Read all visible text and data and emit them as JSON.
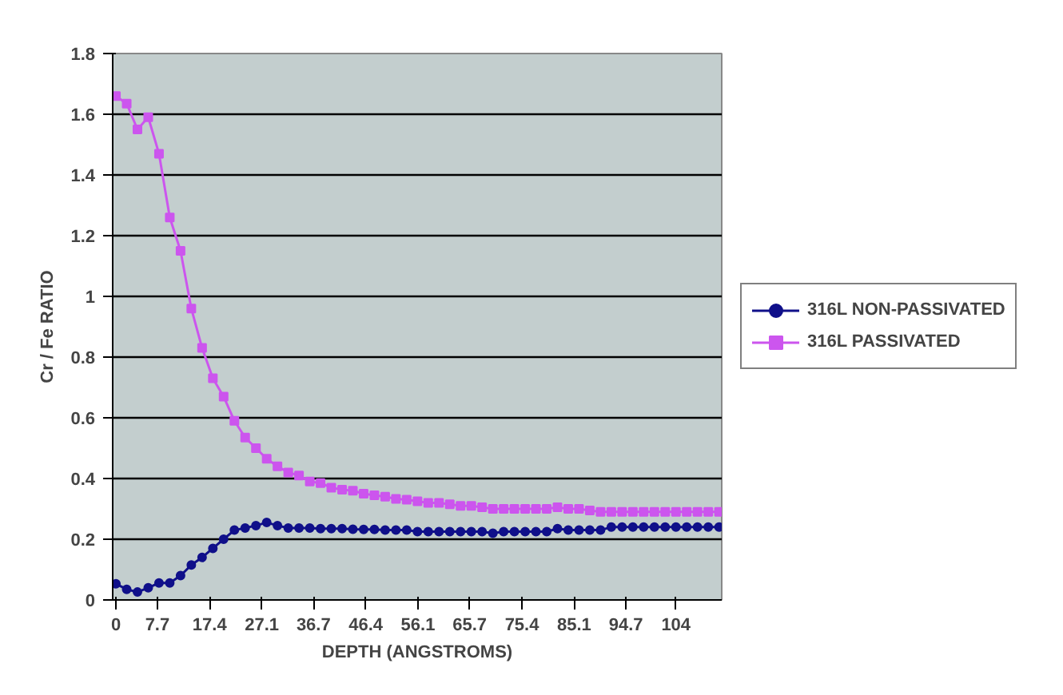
{
  "chart_data": {
    "type": "line",
    "xlabel": "DEPTH (ANGSTROMS)",
    "ylabel": "Cr / Fe RATIO",
    "x": [
      0,
      2,
      4,
      6,
      8,
      10,
      12,
      14,
      16,
      18,
      20,
      22,
      24,
      26,
      28,
      30,
      32,
      34,
      36,
      38,
      40,
      42,
      44,
      46,
      48,
      50,
      52,
      54,
      56,
      58,
      60,
      62,
      64,
      66,
      68,
      70,
      72,
      74,
      76,
      78,
      80,
      82,
      84,
      86,
      88,
      90,
      92,
      94,
      96,
      98,
      100,
      102,
      104,
      106,
      108,
      110,
      112
    ],
    "xlim": [
      -0.6,
      112.5
    ],
    "xticks": [
      0,
      7.7,
      17.4,
      27.1,
      36.7,
      46.4,
      56.1,
      65.7,
      75.4,
      85.1,
      94.7,
      104
    ],
    "ylim": [
      0,
      1.8
    ],
    "yticks": [
      0,
      0.2,
      0.4,
      0.6,
      0.8,
      1,
      1.2,
      1.4,
      1.6,
      1.8
    ],
    "grid": "y",
    "legend": "right",
    "series": [
      {
        "name": "316L NON-PASSIVATED",
        "color": "#10108a",
        "marker": "circle",
        "values": [
          0.053,
          0.035,
          0.026,
          0.04,
          0.056,
          0.056,
          0.08,
          0.115,
          0.14,
          0.17,
          0.2,
          0.23,
          0.237,
          0.245,
          0.255,
          0.245,
          0.237,
          0.237,
          0.237,
          0.235,
          0.235,
          0.235,
          0.233,
          0.232,
          0.232,
          0.23,
          0.23,
          0.23,
          0.225,
          0.225,
          0.225,
          0.225,
          0.225,
          0.225,
          0.225,
          0.22,
          0.225,
          0.225,
          0.225,
          0.225,
          0.225,
          0.235,
          0.23,
          0.23,
          0.23,
          0.23,
          0.24,
          0.24,
          0.24,
          0.24,
          0.24,
          0.24,
          0.24,
          0.24,
          0.24,
          0.24,
          0.24
        ]
      },
      {
        "name": "316L PASSIVATED",
        "color": "#cc55ee",
        "marker": "square",
        "values": [
          1.66,
          1.635,
          1.55,
          1.59,
          1.47,
          1.26,
          1.15,
          0.96,
          0.83,
          0.73,
          0.67,
          0.59,
          0.535,
          0.5,
          0.465,
          0.44,
          0.42,
          0.41,
          0.39,
          0.385,
          0.37,
          0.363,
          0.36,
          0.35,
          0.345,
          0.34,
          0.333,
          0.33,
          0.325,
          0.32,
          0.32,
          0.315,
          0.31,
          0.31,
          0.305,
          0.3,
          0.3,
          0.3,
          0.3,
          0.3,
          0.3,
          0.305,
          0.3,
          0.3,
          0.295,
          0.29,
          0.29,
          0.29,
          0.29,
          0.29,
          0.29,
          0.29,
          0.29,
          0.29,
          0.29,
          0.29,
          0.29
        ]
      }
    ]
  }
}
